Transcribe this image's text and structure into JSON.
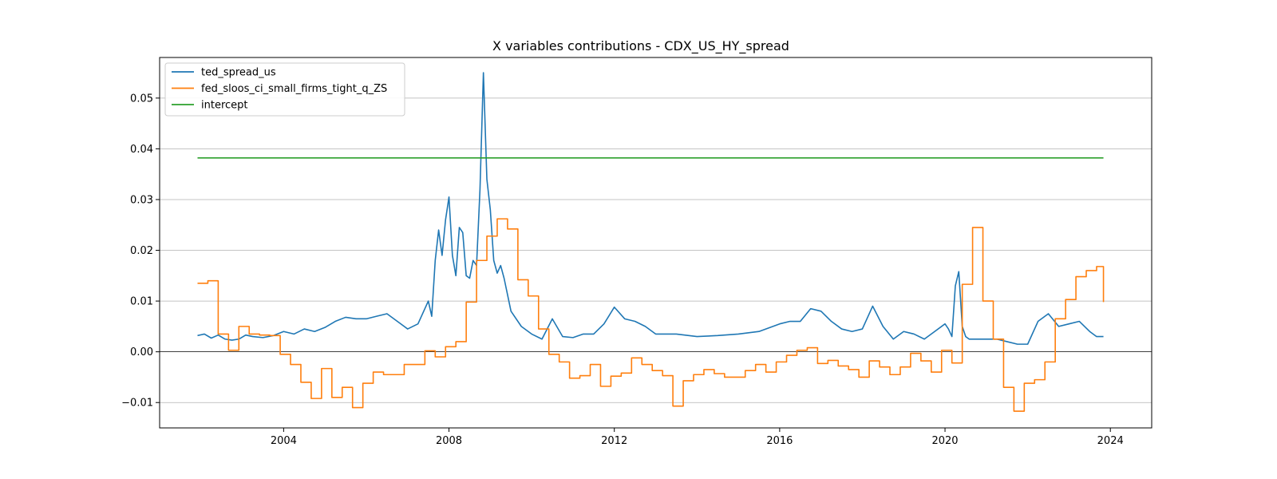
{
  "chart_data": {
    "type": "line",
    "title": "X variables contributions - CDX_US_HY_spread",
    "xlabel": "",
    "ylabel": "",
    "xlim": [
      2001.0,
      2025.0
    ],
    "ylim": [
      -0.015,
      0.058
    ],
    "x_ticks": [
      2004,
      2008,
      2012,
      2016,
      2020,
      2024
    ],
    "x_tick_labels": [
      "2004",
      "2008",
      "2012",
      "2016",
      "2020",
      "2024"
    ],
    "y_ticks": [
      -0.01,
      0.0,
      0.01,
      0.02,
      0.03,
      0.04,
      0.05
    ],
    "y_tick_labels": [
      "−0.01",
      "0.00",
      "0.01",
      "0.02",
      "0.03",
      "0.04",
      "0.05"
    ],
    "grid": "horizontal",
    "zero_line": true,
    "legend_position": "upper left",
    "series": [
      {
        "name": "ted_spread_us",
        "color": "#1f77b4",
        "step": false,
        "x": [
          2001.917,
          2002.083,
          2002.25,
          2002.417,
          2002.583,
          2002.75,
          2002.917,
          2003.083,
          2003.25,
          2003.5,
          2003.75,
          2004.0,
          2004.25,
          2004.5,
          2004.75,
          2005.0,
          2005.25,
          2005.5,
          2005.75,
          2006.0,
          2006.25,
          2006.5,
          2006.75,
          2007.0,
          2007.25,
          2007.5,
          2007.583,
          2007.667,
          2007.75,
          2007.833,
          2007.917,
          2008.0,
          2008.083,
          2008.167,
          2008.25,
          2008.333,
          2008.417,
          2008.5,
          2008.583,
          2008.667,
          2008.75,
          2008.833,
          2008.917,
          2009.0,
          2009.083,
          2009.167,
          2009.25,
          2009.333,
          2009.5,
          2009.75,
          2010.0,
          2010.25,
          2010.5,
          2010.75,
          2011.0,
          2011.25,
          2011.5,
          2011.75,
          2012.0,
          2012.25,
          2012.5,
          2012.75,
          2013.0,
          2013.5,
          2014.0,
          2014.5,
          2015.0,
          2015.5,
          2016.0,
          2016.25,
          2016.5,
          2016.75,
          2017.0,
          2017.25,
          2017.5,
          2017.75,
          2018.0,
          2018.25,
          2018.5,
          2018.75,
          2019.0,
          2019.25,
          2019.5,
          2019.75,
          2020.0,
          2020.083,
          2020.167,
          2020.25,
          2020.333,
          2020.417,
          2020.5,
          2020.583,
          2020.75,
          2021.0,
          2021.25,
          2021.5,
          2021.75,
          2022.0,
          2022.25,
          2022.5,
          2022.75,
          2023.0,
          2023.25,
          2023.5,
          2023.667,
          2023.833
        ],
        "y": [
          0.0032,
          0.0035,
          0.0027,
          0.0033,
          0.0025,
          0.0023,
          0.0025,
          0.0033,
          0.003,
          0.0028,
          0.0032,
          0.004,
          0.0035,
          0.0045,
          0.004,
          0.0048,
          0.006,
          0.0068,
          0.0065,
          0.0065,
          0.007,
          0.0075,
          0.006,
          0.0045,
          0.0055,
          0.01,
          0.007,
          0.018,
          0.024,
          0.019,
          0.026,
          0.0305,
          0.019,
          0.015,
          0.0245,
          0.0235,
          0.015,
          0.0145,
          0.018,
          0.017,
          0.032,
          0.055,
          0.034,
          0.028,
          0.018,
          0.0155,
          0.017,
          0.0145,
          0.008,
          0.005,
          0.0035,
          0.0025,
          0.0065,
          0.003,
          0.0028,
          0.0035,
          0.0035,
          0.0055,
          0.0088,
          0.0065,
          0.006,
          0.005,
          0.0035,
          0.0035,
          0.003,
          0.0032,
          0.0035,
          0.004,
          0.0055,
          0.006,
          0.006,
          0.0085,
          0.008,
          0.006,
          0.0045,
          0.004,
          0.0045,
          0.009,
          0.005,
          0.0025,
          0.004,
          0.0035,
          0.0025,
          0.004,
          0.0055,
          0.0045,
          0.003,
          0.013,
          0.0158,
          0.005,
          0.003,
          0.0025,
          0.0025,
          0.0025,
          0.0025,
          0.002,
          0.0015,
          0.0015,
          0.006,
          0.0075,
          0.005,
          0.0055,
          0.006,
          0.004,
          0.003,
          0.003
        ]
      },
      {
        "name": "fed_sloos_ci_small_firms_tight_q_ZS",
        "color": "#ff7f0e",
        "step": true,
        "x": [
          2001.917,
          2002.167,
          2002.417,
          2002.667,
          2002.917,
          2003.167,
          2003.417,
          2003.667,
          2003.917,
          2004.167,
          2004.417,
          2004.667,
          2004.917,
          2005.167,
          2005.417,
          2005.667,
          2005.917,
          2006.167,
          2006.417,
          2006.667,
          2006.917,
          2007.167,
          2007.417,
          2007.667,
          2007.917,
          2008.167,
          2008.417,
          2008.667,
          2008.917,
          2009.167,
          2009.417,
          2009.667,
          2009.917,
          2010.167,
          2010.417,
          2010.667,
          2010.917,
          2011.167,
          2011.417,
          2011.667,
          2011.917,
          2012.167,
          2012.417,
          2012.667,
          2012.917,
          2013.167,
          2013.417,
          2013.667,
          2013.917,
          2014.167,
          2014.417,
          2014.667,
          2014.917,
          2015.167,
          2015.417,
          2015.667,
          2015.917,
          2016.167,
          2016.417,
          2016.667,
          2016.917,
          2017.167,
          2017.417,
          2017.667,
          2017.917,
          2018.167,
          2018.417,
          2018.667,
          2018.917,
          2019.167,
          2019.417,
          2019.667,
          2019.917,
          2020.167,
          2020.417,
          2020.667,
          2020.917,
          2021.167,
          2021.417,
          2021.667,
          2021.917,
          2022.167,
          2022.417,
          2022.667,
          2022.917,
          2023.167,
          2023.417,
          2023.667,
          2023.833
        ],
        "y": [
          0.0135,
          0.014,
          0.0035,
          0.0003,
          0.005,
          0.0035,
          0.0033,
          0.0032,
          -0.0005,
          -0.0025,
          -0.006,
          -0.0092,
          -0.0033,
          -0.009,
          -0.007,
          -0.011,
          -0.0062,
          -0.004,
          -0.0045,
          -0.0045,
          -0.0025,
          -0.0025,
          0.0002,
          -0.001,
          0.001,
          0.002,
          0.0098,
          0.018,
          0.0228,
          0.0262,
          0.0242,
          0.0142,
          0.011,
          0.0045,
          -0.0005,
          -0.002,
          -0.0052,
          -0.0047,
          -0.0025,
          -0.0068,
          -0.0048,
          -0.0042,
          -0.0012,
          -0.0025,
          -0.0037,
          -0.0047,
          -0.0107,
          -0.0057,
          -0.0045,
          -0.0035,
          -0.0043,
          -0.005,
          -0.005,
          -0.0037,
          -0.0025,
          -0.004,
          -0.002,
          -0.0007,
          0.0003,
          0.0008,
          -0.0023,
          -0.0017,
          -0.0028,
          -0.0035,
          -0.005,
          -0.0018,
          -0.003,
          -0.0045,
          -0.003,
          -0.0003,
          -0.0018,
          -0.004,
          0.0003,
          -0.0022,
          0.0133,
          0.0245,
          0.01,
          0.0025,
          -0.007,
          -0.0117,
          -0.0062,
          -0.0055,
          -0.002,
          0.0065,
          0.0103,
          0.0148,
          0.016,
          0.0168,
          0.0098
        ]
      },
      {
        "name": "intercept",
        "color": "#2ca02c",
        "step": false,
        "x": [
          2001.917,
          2023.833
        ],
        "y": [
          0.0382,
          0.0382
        ]
      }
    ]
  }
}
